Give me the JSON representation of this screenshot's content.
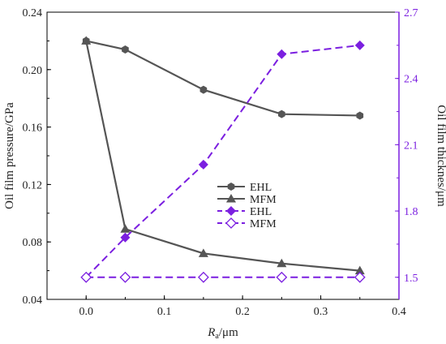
{
  "chart_data": {
    "type": "line",
    "x": [
      0,
      0.05,
      0.15,
      0.25,
      0.35
    ],
    "xlabel_main": "R",
    "xlabel_sub": "a",
    "xlabel_unit": "/μm",
    "ylabel_left": "Oil film pressure/GPa",
    "ylabel_right": "Oil film thicknes/μm",
    "xlim": [
      -0.05,
      0.4
    ],
    "ylim_left": [
      0.04,
      0.24
    ],
    "ylim_right": [
      1.4,
      2.7
    ],
    "xticks": [
      "0.0",
      "0.1",
      "0.2",
      "0.3",
      "0.4"
    ],
    "yticks_left": [
      "0.04",
      "0.08",
      "0.12",
      "0.16",
      "0.20",
      "0.24"
    ],
    "yticks_right": [
      "1.5",
      "1.8",
      "2.1",
      "2.4",
      "2.7"
    ],
    "grid": false,
    "legend_position": "center",
    "series": [
      {
        "name": "EHL",
        "axis": "left",
        "color": "#555555",
        "line": "solid",
        "marker": "hexagon",
        "values": [
          0.22,
          0.214,
          0.186,
          0.169,
          0.168
        ]
      },
      {
        "name": "MFM",
        "axis": "left",
        "color": "#555555",
        "line": "solid",
        "marker": "triangle",
        "values": [
          0.22,
          0.089,
          0.072,
          0.065,
          0.06
        ]
      },
      {
        "name": "EHL",
        "axis": "right",
        "color": "#7B1FE0",
        "line": "dashed",
        "marker": "diamond-filled",
        "values": [
          1.5,
          1.68,
          2.01,
          2.51,
          2.55
        ]
      },
      {
        "name": "MFM",
        "axis": "right",
        "color": "#7B1FE0",
        "line": "dashed",
        "marker": "diamond-open",
        "values": [
          1.5,
          1.5,
          1.5,
          1.5,
          1.5
        ]
      }
    ]
  }
}
